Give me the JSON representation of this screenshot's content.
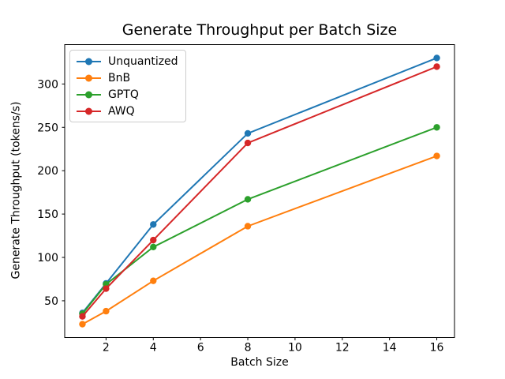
{
  "chart_data": {
    "type": "line",
    "title": "Generate Throughput per Batch Size",
    "xlabel": "Batch Size",
    "ylabel": "Generate Throughput (tokens/s)",
    "x": [
      1,
      2,
      4,
      8,
      16
    ],
    "series": [
      {
        "name": "Unquantized",
        "color": "#1f77b4",
        "values": [
          36,
          70,
          138,
          243,
          330
        ]
      },
      {
        "name": "BnB",
        "color": "#ff7f0e",
        "values": [
          23,
          38,
          73,
          136,
          217
        ]
      },
      {
        "name": "GPTQ",
        "color": "#2ca02c",
        "values": [
          35,
          69,
          112,
          167,
          250
        ]
      },
      {
        "name": "AWQ",
        "color": "#d62728",
        "values": [
          32,
          64,
          120,
          232,
          320
        ]
      }
    ],
    "xlim": [
      0.25,
      16.75
    ],
    "ylim": [
      7.6,
      345.4
    ],
    "xticks": [
      2,
      4,
      6,
      8,
      10,
      12,
      14,
      16
    ],
    "yticks": [
      50,
      100,
      150,
      200,
      250,
      300
    ],
    "grid": false,
    "legend_position": "upper left",
    "marker": "o",
    "background_color": "#ffffff",
    "spine_color": "#000000"
  }
}
